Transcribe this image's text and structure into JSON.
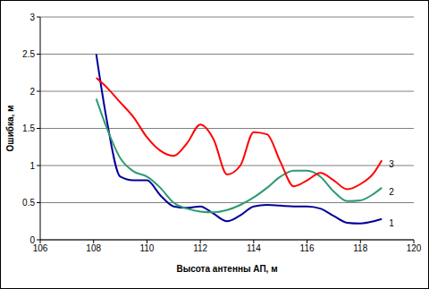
{
  "chart_data": {
    "type": "line",
    "x_label": "Высота антенны АП, м",
    "y_label": "Ошибка, м",
    "x": [
      108.1,
      108.5,
      109,
      109.5,
      110,
      110.5,
      111,
      111.5,
      112,
      112.5,
      113,
      113.5,
      114,
      114.5,
      115,
      115.5,
      116,
      116.5,
      117,
      117.5,
      118,
      118.5,
      118.8
    ],
    "series": [
      {
        "name": "1",
        "color": "#000099",
        "values": [
          2.5,
          1.6,
          0.85,
          0.8,
          0.8,
          0.6,
          0.45,
          0.43,
          0.45,
          0.35,
          0.25,
          0.33,
          0.45,
          0.47,
          0.46,
          0.45,
          0.45,
          0.42,
          0.32,
          0.23,
          0.22,
          0.25,
          0.28
        ]
      },
      {
        "name": "2",
        "color": "#2f9a6f",
        "values": [
          1.9,
          1.5,
          1.1,
          0.92,
          0.85,
          0.7,
          0.5,
          0.42,
          0.38,
          0.37,
          0.4,
          0.47,
          0.57,
          0.7,
          0.85,
          0.93,
          0.93,
          0.85,
          0.65,
          0.52,
          0.53,
          0.62,
          0.7
        ]
      },
      {
        "name": "3",
        "color": "#ff0000",
        "values": [
          2.18,
          2.05,
          1.85,
          1.65,
          1.38,
          1.2,
          1.13,
          1.3,
          1.55,
          1.35,
          0.88,
          1.0,
          1.45,
          1.42,
          1.05,
          0.72,
          0.8,
          0.9,
          0.8,
          0.68,
          0.75,
          0.9,
          1.07
        ]
      }
    ],
    "xlim": [
      106,
      120
    ],
    "xticks": [
      106,
      108,
      110,
      112,
      114,
      116,
      118,
      120
    ],
    "ylim": [
      0,
      3
    ],
    "yticks": [
      0,
      0.5,
      1,
      1.5,
      2,
      2.5,
      3
    ],
    "grid": true
  }
}
